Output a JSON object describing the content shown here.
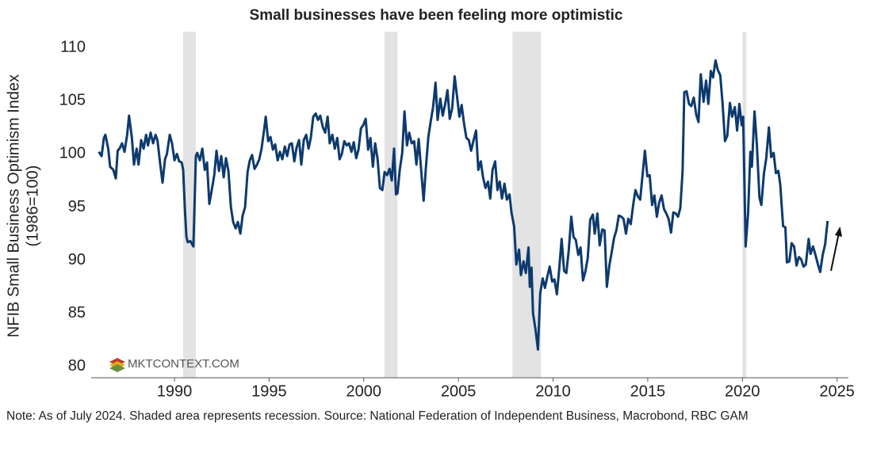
{
  "chart_data": {
    "type": "line",
    "title": "Small businesses have been feeling more optimistic",
    "ylabel": [
      "NFIB Small Business Optimism Index",
      "(1986=100)"
    ],
    "note": "Note: As of July 2024. Shaded area represents recession. Source: National Federation of Independent Business, Macrobond, RBC GAM",
    "watermark": "MKTCONTEXT.COM",
    "xlim": [
      1985.6,
      2025.6
    ],
    "ylim": [
      78.95,
      111.5
    ],
    "xticks": [
      1990,
      1995,
      2000,
      2005,
      2010,
      2015,
      2020,
      2025
    ],
    "yticks": [
      80,
      85,
      90,
      95,
      100,
      105,
      110
    ],
    "grid": false,
    "recession_color": "#e3e3e3",
    "recessions": [
      [
        1990.46,
        1991.13
      ],
      [
        2001.1,
        2001.78
      ],
      [
        2007.85,
        2009.36
      ],
      [
        2020.0,
        2020.2
      ]
    ],
    "series": [
      {
        "name": "NFIB Small Business Optimism Index",
        "color": "#0d3a6e",
        "x": [
          1986.0,
          1986.15,
          1986.27,
          1986.35,
          1986.5,
          1986.6,
          1986.77,
          1986.9,
          1987.0,
          1987.1,
          1987.23,
          1987.36,
          1987.5,
          1987.6,
          1987.75,
          1987.86,
          1988.0,
          1988.1,
          1988.24,
          1988.37,
          1988.5,
          1988.6,
          1988.74,
          1988.87,
          1989.0,
          1989.1,
          1989.25,
          1989.37,
          1989.5,
          1989.6,
          1989.75,
          1989.87,
          1990.0,
          1990.13,
          1990.25,
          1990.38,
          1990.46,
          1990.55,
          1990.63,
          1990.7,
          1990.84,
          1991.0,
          1991.13,
          1991.2,
          1991.34,
          1991.47,
          1991.6,
          1991.72,
          1991.84,
          1991.97,
          1992.1,
          1992.22,
          1992.35,
          1992.47,
          1992.6,
          1992.72,
          1992.85,
          1992.98,
          1993.1,
          1993.23,
          1993.35,
          1993.48,
          1993.6,
          1993.73,
          1993.86,
          1993.98,
          1994.1,
          1994.23,
          1994.36,
          1994.48,
          1994.6,
          1994.73,
          1994.82,
          1994.95,
          1995.07,
          1995.2,
          1995.32,
          1995.45,
          1995.57,
          1995.7,
          1995.83,
          1995.95,
          1996.08,
          1996.2,
          1996.33,
          1996.45,
          1996.58,
          1996.7,
          1996.83,
          1996.96,
          1997.08,
          1997.2,
          1997.33,
          1997.46,
          1997.58,
          1997.7,
          1997.84,
          1997.96,
          1998.09,
          1998.2,
          1998.34,
          1998.47,
          1998.6,
          1998.72,
          1998.84,
          1998.97,
          1999.1,
          1999.22,
          1999.35,
          1999.47,
          1999.6,
          1999.72,
          1999.85,
          1999.97,
          2000.1,
          2000.23,
          2000.35,
          2000.48,
          2000.6,
          2000.73,
          2000.85,
          2000.98,
          2001.1,
          2001.23,
          2001.36,
          2001.48,
          2001.6,
          2001.7,
          2001.78,
          2001.9,
          2002.03,
          2002.15,
          2002.28,
          2002.4,
          2002.53,
          2002.66,
          2002.78,
          2002.9,
          2003.03,
          2003.16,
          2003.28,
          2003.41,
          2003.53,
          2003.66,
          2003.79,
          2003.9,
          2004.04,
          2004.17,
          2004.3,
          2004.42,
          2004.54,
          2004.67,
          2004.8,
          2004.92,
          2005.05,
          2005.17,
          2005.3,
          2005.42,
          2005.55,
          2005.67,
          2005.8,
          2005.93,
          2006.05,
          2006.18,
          2006.3,
          2006.43,
          2006.56,
          2006.68,
          2006.8,
          2006.94,
          2007.06,
          2007.18,
          2007.3,
          2007.43,
          2007.56,
          2007.7,
          2007.8,
          2007.94,
          2008.06,
          2008.2,
          2008.3,
          2008.44,
          2008.56,
          2008.7,
          2008.77,
          2008.86,
          2008.94,
          2009.07,
          2009.2,
          2009.32,
          2009.45,
          2009.57,
          2009.7,
          2009.82,
          2009.95,
          2010.07,
          2010.2,
          2010.33,
          2010.45,
          2010.58,
          2010.7,
          2010.83,
          2010.96,
          2011.08,
          2011.2,
          2011.33,
          2011.45,
          2011.58,
          2011.7,
          2011.83,
          2011.96,
          2012.1,
          2012.2,
          2012.34,
          2012.46,
          2012.6,
          2012.72,
          2012.84,
          2012.97,
          2013.1,
          2013.22,
          2013.34,
          2013.47,
          2013.6,
          2013.72,
          2013.85,
          2013.97,
          2014.1,
          2014.23,
          2014.35,
          2014.48,
          2014.6,
          2014.73,
          2014.85,
          2014.98,
          2015.1,
          2015.23,
          2015.35,
          2015.48,
          2015.6,
          2015.73,
          2015.86,
          2015.98,
          2016.1,
          2016.23,
          2016.35,
          2016.48,
          2016.6,
          2016.72,
          2016.84,
          2016.93,
          2017.05,
          2017.18,
          2017.3,
          2017.43,
          2017.56,
          2017.68,
          2017.8,
          2017.95,
          2018.08,
          2018.2,
          2018.33,
          2018.45,
          2018.58,
          2018.7,
          2018.83,
          2018.95,
          2019.08,
          2019.2,
          2019.34,
          2019.46,
          2019.6,
          2019.72,
          2019.84,
          2019.96,
          2020.04,
          2020.17,
          2020.3,
          2020.42,
          2020.5,
          2020.64,
          2020.76,
          2020.9,
          2021.0,
          2021.14,
          2021.26,
          2021.4,
          2021.52,
          2021.65,
          2021.77,
          2021.9,
          2022.0,
          2022.15,
          2022.27,
          2022.35,
          2022.48,
          2022.6,
          2022.73,
          2022.86,
          2022.98,
          2023.1,
          2023.23,
          2023.35,
          2023.5,
          2023.6,
          2023.73,
          2023.86,
          2023.99,
          2024.11,
          2024.24,
          2024.37,
          2024.5
        ],
        "values": [
          100.2,
          99.8,
          101.5,
          101.8,
          100.5,
          98.8,
          98.5,
          97.7,
          100.3,
          100.5,
          101,
          100.2,
          101.8,
          103.6,
          101.5,
          99,
          100.5,
          99,
          101.3,
          100.5,
          101.8,
          100.8,
          102,
          101,
          101.8,
          101.3,
          99,
          97.3,
          99.5,
          100,
          101.8,
          101,
          99.4,
          100,
          99.3,
          99.2,
          98.5,
          94.8,
          92.2,
          91.7,
          91.8,
          91.3,
          99.8,
          100.1,
          99.4,
          100.5,
          98.5,
          99.2,
          95.3,
          96.6,
          98,
          100.3,
          98.4,
          99.8,
          97.8,
          99.6,
          98.4,
          95,
          93.6,
          93,
          93.6,
          92.5,
          94.2,
          95,
          98.3,
          99.4,
          99.9,
          98.6,
          99,
          99.5,
          100.5,
          102.2,
          103.5,
          101.2,
          101.6,
          100.4,
          100.9,
          99.4,
          100.2,
          99.5,
          100.7,
          99.8,
          100.9,
          101,
          99.3,
          100.6,
          101.3,
          99,
          101.3,
          101.8,
          100.5,
          101.5,
          103.5,
          103.8,
          103.2,
          103.6,
          102.5,
          102,
          103.5,
          101,
          101.8,
          100.5,
          101.5,
          99.5,
          100,
          101.2,
          100.8,
          101,
          100.2,
          101.1,
          99.6,
          100.4,
          102.4,
          102.7,
          103.3,
          100.4,
          101.5,
          98.8,
          101,
          99.5,
          96.8,
          96.6,
          98.3,
          98,
          98.6,
          97.5,
          100.5,
          96.2,
          96.3,
          98.5,
          100.1,
          104,
          100.8,
          102,
          101,
          101.2,
          99,
          101.4,
          98.5,
          95.6,
          98.7,
          101.6,
          103,
          104.4,
          106.7,
          103.2,
          105.2,
          103.6,
          104.7,
          106,
          103.3,
          104.3,
          107.3,
          105.5,
          103.5,
          104.6,
          102.8,
          101.5,
          101.3,
          100.3,
          101.3,
          102.2,
          98.5,
          99.3,
          97.8,
          96.8,
          97.4,
          95.8,
          98.5,
          99.3,
          96.6,
          97.4,
          95.8,
          97.2,
          95.7,
          96.2,
          94.5,
          93.2,
          89.6,
          91,
          88.6,
          89.9,
          88.8,
          91.2,
          87.5,
          89.3,
          85,
          83.5,
          81.6,
          86.9,
          88.3,
          87.4,
          88.5,
          89.4,
          88,
          88.2,
          86.8,
          89.3,
          92,
          89,
          88.8,
          91,
          94.1,
          92.2,
          91.9,
          90.5,
          91.2,
          88.1,
          88.9,
          90.2,
          93.8,
          94.3,
          92.5,
          94.4,
          91.4,
          92.9,
          92.8,
          87.5,
          89.5,
          90.8,
          92.1,
          92.8,
          94.2,
          94.1,
          93.9,
          92.5,
          93.9,
          93.4,
          95.2,
          96.6,
          96,
          95.7,
          98.1,
          100.3,
          97.9,
          98,
          95.2,
          96.1,
          94.1,
          95.4,
          96.1,
          94.8,
          94.4,
          93.9,
          92.6,
          94.5,
          94.4,
          94.1,
          94.9,
          98.4,
          105.8,
          105.9,
          104.7,
          104.5,
          105.3,
          103.7,
          103,
          107.5,
          104.9,
          106.9,
          104.7,
          107.8,
          107.2,
          108.8,
          107.9,
          107.4,
          104.8,
          101.2,
          101.7,
          104.8,
          103.5,
          104.4,
          102.2,
          104.7,
          102.7,
          103.5,
          91.3,
          94.4,
          100.2,
          98.8,
          104,
          101,
          95.9,
          95.2,
          98.2,
          99.6,
          102.5,
          99.7,
          100.1,
          98.2,
          98.4,
          97.1,
          93.2,
          93.1,
          89.8,
          89.9,
          91.6,
          91.3,
          89.5,
          90.3,
          90.1,
          89.4,
          89.6,
          92,
          90.6,
          91.3,
          90.5,
          89.6,
          88.9,
          90.5,
          91.5,
          93.7
        ]
      }
    ]
  }
}
